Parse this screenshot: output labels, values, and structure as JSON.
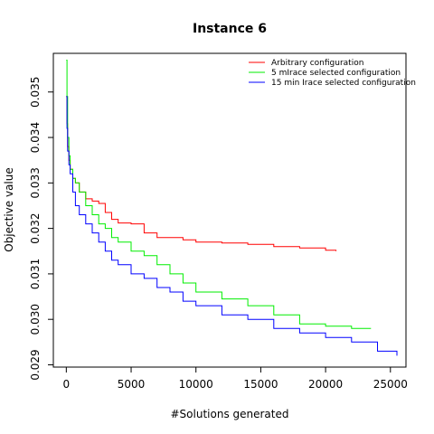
{
  "chart_data": {
    "type": "line",
    "title": "Instance 6",
    "xlabel": "#Solutions generated",
    "ylabel": "Objective value",
    "xlim": [
      -1000,
      26200
    ],
    "ylim": [
      0.02895,
      0.03585
    ],
    "xticks": [
      0,
      5000,
      10000,
      15000,
      20000,
      25000
    ],
    "xtick_labels": [
      "0",
      "5000",
      "10000",
      "15000",
      "20000",
      "25000"
    ],
    "yticks": [
      0.029,
      0.03,
      0.031,
      0.032,
      0.033,
      0.034,
      0.035
    ],
    "ytick_labels": [
      "0.029",
      "0.030",
      "0.031",
      "0.032",
      "0.033",
      "0.034",
      "0.035"
    ],
    "grid": false,
    "legend_position": "top-right",
    "series": [
      {
        "name": "Arbitrary configuration",
        "color": "#ff0000",
        "x": [
          0,
          50,
          100,
          200,
          300,
          500,
          700,
          1000,
          1500,
          2000,
          2500,
          3000,
          3500,
          4000,
          5000,
          6000,
          7000,
          8000,
          9000,
          10000,
          12000,
          14000,
          16000,
          18000,
          20000,
          20800
        ],
        "y": [
          0.0349,
          0.0343,
          0.0338,
          0.0335,
          0.0333,
          0.0331,
          0.033,
          0.0328,
          0.03265,
          0.0326,
          0.03255,
          0.03235,
          0.0322,
          0.03212,
          0.0321,
          0.0319,
          0.0318,
          0.0318,
          0.03175,
          0.0317,
          0.03168,
          0.03165,
          0.0316,
          0.03157,
          0.03152,
          0.0315
        ]
      },
      {
        "name": "5 mIrace selected configuration",
        "color": "#00ee00",
        "x": [
          0,
          50,
          100,
          200,
          300,
          500,
          700,
          1000,
          1500,
          2000,
          2500,
          3000,
          3500,
          4000,
          5000,
          6000,
          7000,
          8000,
          9000,
          10000,
          12000,
          14000,
          16000,
          18000,
          20000,
          22000,
          23500
        ],
        "y": [
          0.0357,
          0.0349,
          0.034,
          0.0336,
          0.0333,
          0.0331,
          0.033,
          0.0328,
          0.0325,
          0.0323,
          0.0321,
          0.032,
          0.0318,
          0.0317,
          0.0315,
          0.0314,
          0.0312,
          0.031,
          0.0308,
          0.0306,
          0.03045,
          0.0303,
          0.0301,
          0.0299,
          0.02985,
          0.0298,
          0.0298
        ]
      },
      {
        "name": "15 min Irace selected configuration",
        "color": "#0000ff",
        "x": [
          0,
          50,
          100,
          200,
          300,
          500,
          700,
          1000,
          1500,
          2000,
          2500,
          3000,
          3500,
          4000,
          5000,
          6000,
          7000,
          8000,
          9000,
          10000,
          12000,
          14000,
          16000,
          18000,
          20000,
          22000,
          24000,
          25500
        ],
        "y": [
          0.0349,
          0.0342,
          0.0337,
          0.0334,
          0.0332,
          0.0328,
          0.0325,
          0.0323,
          0.0321,
          0.0319,
          0.0317,
          0.0315,
          0.0313,
          0.0312,
          0.031,
          0.0309,
          0.0307,
          0.0306,
          0.0304,
          0.0303,
          0.0301,
          0.03,
          0.0298,
          0.0297,
          0.0296,
          0.0295,
          0.0293,
          0.0292
        ]
      }
    ]
  }
}
